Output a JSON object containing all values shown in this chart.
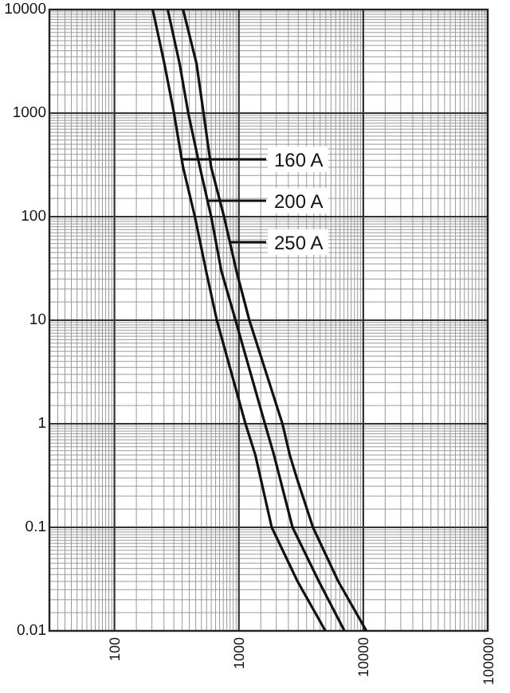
{
  "chart_data": {
    "type": "line",
    "log": "xy",
    "grid": true,
    "legend": "top right",
    "marker": "none",
    "line_style": "solid",
    "xlim": [
      30,
      100000
    ],
    "ylim": [
      0.01,
      10000
    ],
    "xticks": [
      100,
      1000,
      10000,
      100000
    ],
    "yticks": [
      0.01,
      0.1,
      1,
      10,
      100,
      1000,
      10000
    ],
    "series": [
      {
        "name": "160 A",
        "color": "#111111",
        "x": [
          203,
          252,
          301,
          356,
          443,
          545,
          665,
          1130,
          1356,
          1493,
          1837,
          2965,
          4960
        ],
        "values": [
          10000,
          3000,
          1000,
          300,
          100,
          30,
          10,
          1,
          0.5,
          0.3,
          0.1,
          0.03,
          0.01
        ]
      },
      {
        "name": "200 A",
        "color": "#111111",
        "x": [
          268,
          334,
          392,
          486,
          599,
          723,
          940,
          1620,
          1915,
          2135,
          2700,
          4400,
          7060
        ],
        "values": [
          10000,
          3000,
          1000,
          300,
          100,
          30,
          10,
          1,
          0.5,
          0.3,
          0.1,
          0.03,
          0.01
        ]
      },
      {
        "name": "250 A",
        "color": "#111111",
        "x": [
          356,
          457,
          520,
          599,
          760,
          955,
          1214,
          2240,
          2565,
          2920,
          3940,
          6300,
          10600
        ],
        "values": [
          10000,
          3000,
          1000,
          300,
          100,
          30,
          10,
          1,
          0.5,
          0.3,
          0.1,
          0.03,
          0.01
        ]
      }
    ]
  }
}
